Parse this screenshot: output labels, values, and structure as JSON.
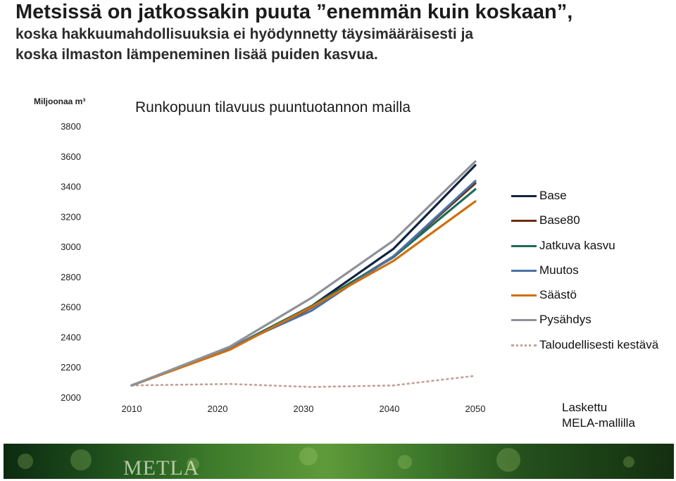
{
  "header": {
    "title": "Metsissä on jatkossakin puuta ”enemmän kuin koskaan”,",
    "subtitle_lines": [
      "koska hakkuumahdollisuuksia ei hyödynnetty täysimääräisesti ja",
      "koska ilmaston lämpeneminen lisää puiden kasvua."
    ]
  },
  "chart_data": {
    "type": "line",
    "title": "Runkopuun tilavuus puuntuotannon mailla",
    "ylabel": "Miljoonaa m³",
    "xlabel": "",
    "ylim": [
      2000,
      3800
    ],
    "y_ticks": [
      "3800",
      "3600",
      "3400",
      "3200",
      "3000",
      "2800",
      "2600",
      "2400",
      "2200",
      "2000"
    ],
    "x_ticks": [
      "2010",
      "2020",
      "2030",
      "2040",
      "2050"
    ],
    "x": [
      2008,
      2020,
      2030,
      2040,
      2050
    ],
    "grid": false,
    "legend_position": "right",
    "series": [
      {
        "name": "Base",
        "color": "#12243e",
        "dash": false,
        "values": [
          2078,
          2322,
          2605,
          2985,
          3540
        ]
      },
      {
        "name": "Base80",
        "color": "#6b2e10",
        "dash": false,
        "values": [
          2078,
          2318,
          2595,
          2935,
          3420
        ]
      },
      {
        "name": "Jatkuva kasvu",
        "color": "#1e6b57",
        "dash": false,
        "values": [
          2078,
          2325,
          2605,
          2930,
          3380
        ]
      },
      {
        "name": "Muutos",
        "color": "#4a72a6",
        "dash": false,
        "values": [
          2078,
          2330,
          2575,
          2935,
          3435
        ]
      },
      {
        "name": "Säästö",
        "color": "#d07010",
        "dash": false,
        "values": [
          2078,
          2315,
          2600,
          2905,
          3300
        ]
      },
      {
        "name": "Pysähdys",
        "color": "#8e9199",
        "dash": false,
        "values": [
          2078,
          2335,
          2660,
          3040,
          3565
        ]
      },
      {
        "name": "Taloudellisesti kestävä",
        "color": "#c4a096",
        "dash": true,
        "values": [
          2078,
          2088,
          2068,
          2078,
          2142
        ]
      }
    ]
  },
  "footnote": {
    "lines": [
      "Laskettu",
      "MELA-mallilla"
    ]
  },
  "footer": {
    "logo_text": "METLA"
  }
}
